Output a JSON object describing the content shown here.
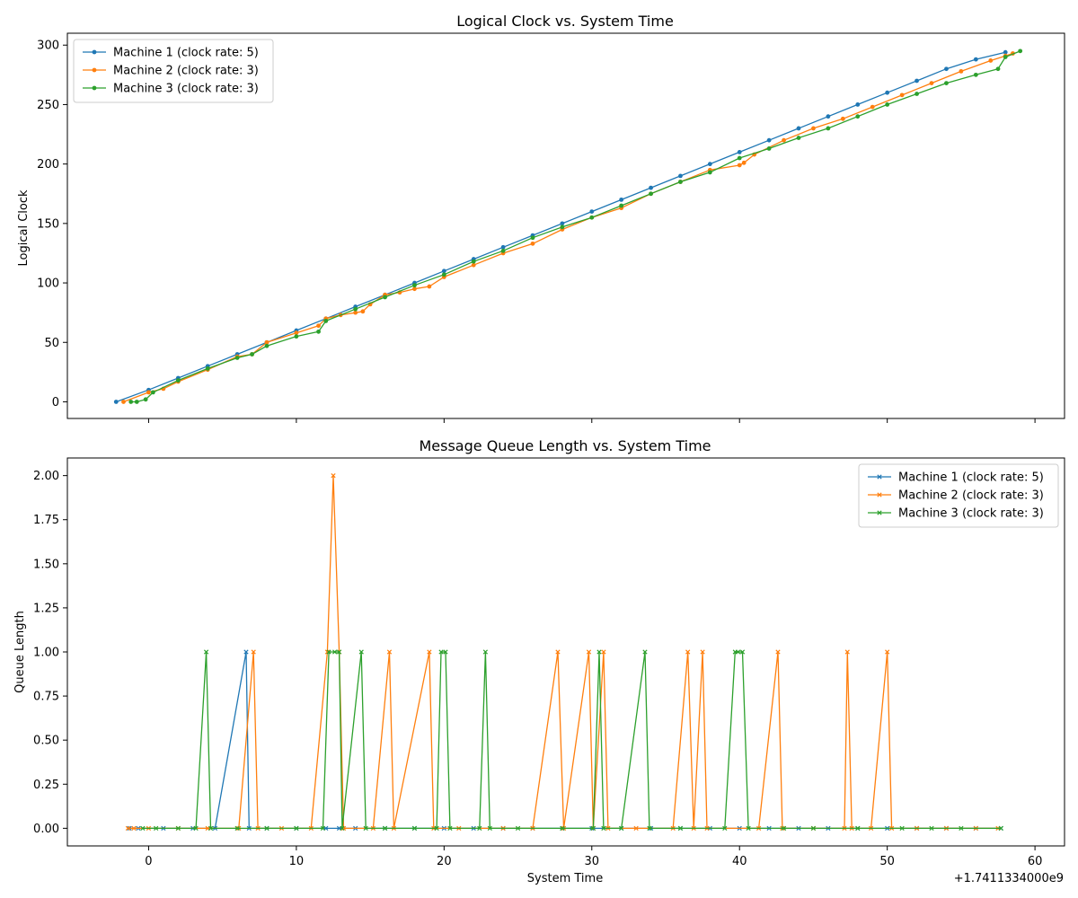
{
  "chart_data": [
    {
      "type": "line",
      "title": "Logical Clock vs. System Time",
      "xlabel": "",
      "ylabel": "Logical Clock",
      "xlim": [
        -5.5,
        62
      ],
      "ylim": [
        -14,
        310
      ],
      "x_ticks": [
        0,
        10,
        20,
        30,
        40,
        50,
        60
      ],
      "x_tick_labels": [
        "0",
        "10",
        "20",
        "30",
        "40",
        "50",
        "60"
      ],
      "y_ticks": [
        0,
        50,
        100,
        150,
        200,
        250,
        300
      ],
      "y_tick_labels": [
        "0",
        "50",
        "100",
        "150",
        "200",
        "250",
        "300"
      ],
      "marker": "circle",
      "legend": "upper-left",
      "grid": false,
      "series": [
        {
          "name": "Machine 1 (clock rate: 5)",
          "color": "#1f77b4",
          "x": [
            -2.2,
            0,
            2,
            4,
            6,
            8,
            10,
            12,
            14,
            16,
            18,
            20,
            22,
            24,
            26,
            28,
            30,
            32,
            34,
            36,
            38,
            40,
            42,
            44,
            46,
            48,
            50,
            52,
            54,
            56,
            58
          ],
          "y": [
            0,
            10,
            20,
            30,
            40,
            50,
            60,
            70,
            80,
            90,
            100,
            110,
            120,
            130,
            140,
            150,
            160,
            170,
            180,
            190,
            200,
            210,
            220,
            230,
            240,
            250,
            260,
            270,
            280,
            288,
            294
          ]
        },
        {
          "name": "Machine 2 (clock rate: 3)",
          "color": "#ff7f0e",
          "x": [
            -1.7,
            0,
            1,
            2,
            4,
            6,
            7,
            8,
            10,
            11.5,
            12,
            13,
            14,
            14.5,
            15,
            16,
            17,
            18,
            19,
            20,
            22,
            24,
            26,
            28,
            30,
            32,
            34,
            36,
            38,
            40,
            40.3,
            41,
            43,
            45,
            47,
            49,
            51,
            53,
            55,
            57,
            58,
            58.5
          ],
          "y": [
            0,
            8,
            11,
            17,
            27,
            38,
            40,
            50,
            58,
            64,
            70,
            73,
            75,
            76,
            82,
            90,
            92,
            95,
            97,
            105,
            115,
            125,
            133,
            145,
            155,
            163,
            175,
            185,
            195,
            199,
            201,
            208,
            220,
            230,
            238,
            248,
            258,
            268,
            278,
            287,
            291,
            293
          ]
        },
        {
          "name": "Machine 3 (clock rate: 3)",
          "color": "#2ca02c",
          "x": [
            -1.2,
            -0.8,
            -0.2,
            0.3,
            2,
            4,
            6,
            7,
            8,
            10,
            11.5,
            12,
            14,
            16,
            18,
            20,
            22,
            24,
            26,
            28,
            30,
            32,
            34,
            36,
            38,
            40,
            42,
            44,
            46,
            48,
            50,
            52,
            54,
            56,
            57.5,
            58,
            59
          ],
          "y": [
            0,
            0,
            2,
            8,
            18,
            28,
            37,
            40,
            47,
            55,
            59,
            68,
            78,
            88,
            98,
            107,
            118,
            127,
            138,
            147,
            155,
            165,
            175,
            185,
            193,
            205,
            213,
            222,
            230,
            240,
            250,
            259,
            268,
            275,
            280,
            290,
            295
          ]
        }
      ]
    },
    {
      "type": "line",
      "title": "Message Queue Length vs. System Time",
      "xlabel": "System Time",
      "ylabel": "Queue Length",
      "xlim": [
        -5.5,
        62
      ],
      "ylim": [
        -0.1,
        2.1
      ],
      "x_ticks": [
        0,
        10,
        20,
        30,
        40,
        50,
        60
      ],
      "x_tick_labels": [
        "0",
        "10",
        "20",
        "30",
        "40",
        "50",
        "60"
      ],
      "x_offset_label": "+1.7411334000e9",
      "y_ticks": [
        0,
        0.25,
        0.5,
        0.75,
        1.0,
        1.25,
        1.5,
        1.75,
        2.0
      ],
      "y_tick_labels": [
        "0.00",
        "0.25",
        "0.50",
        "0.75",
        "1.00",
        "1.25",
        "1.50",
        "1.75",
        "2.00"
      ],
      "marker": "x",
      "legend": "upper-right",
      "grid": false,
      "series": [
        {
          "name": "Machine 1 (clock rate: 5)",
          "color": "#1f77b4",
          "x": [
            -1.3,
            -0.7,
            1,
            3,
            4.5,
            6.6,
            6.8,
            8,
            10,
            12,
            12.9,
            14,
            16,
            18,
            20,
            22,
            24,
            26,
            28,
            30,
            32,
            34,
            36,
            38,
            40,
            42,
            44,
            46,
            48,
            50,
            52,
            54,
            56,
            57.7
          ],
          "y": [
            0,
            0,
            0,
            0,
            0,
            1,
            0,
            0,
            0,
            0,
            0,
            0,
            0,
            0,
            0,
            0,
            0,
            0,
            0,
            0,
            0,
            0,
            0,
            0,
            0,
            0,
            0,
            0,
            0,
            0,
            0,
            0,
            0,
            0
          ]
        },
        {
          "name": "Machine 2 (clock rate: 3)",
          "color": "#ff7f0e",
          "x": [
            -1.4,
            -1,
            0,
            2,
            4,
            6.1,
            7.1,
            7.4,
            9,
            11,
            12.1,
            12.5,
            12.9,
            13.2,
            15.2,
            16.3,
            16.6,
            19,
            19.3,
            21,
            24,
            26,
            27.7,
            28.1,
            29.8,
            30.1,
            30.8,
            31.1,
            33,
            35.5,
            36.5,
            36.9,
            37.5,
            37.8,
            41.3,
            42.6,
            42.9,
            45,
            47.1,
            47.3,
            47.6,
            48.9,
            50,
            50.3,
            52,
            54,
            56,
            57.5
          ],
          "y": [
            0,
            0,
            0,
            0,
            0,
            0,
            1,
            0,
            0,
            0,
            1,
            2,
            1,
            0,
            0,
            1,
            0,
            1,
            0,
            0,
            0,
            0,
            1,
            0,
            1,
            0,
            1,
            0,
            0,
            0,
            1,
            0,
            1,
            0,
            0,
            1,
            0,
            0,
            0,
            1,
            0,
            0,
            1,
            0,
            0,
            0,
            0,
            0
          ]
        },
        {
          "name": "Machine 3 (clock rate: 3)",
          "color": "#2ca02c",
          "x": [
            -0.4,
            0.5,
            2,
            3.2,
            3.9,
            4.2,
            6,
            8,
            10,
            11.8,
            12.2,
            12.6,
            12.9,
            13.1,
            14.4,
            14.7,
            16,
            18,
            19.5,
            19.8,
            20.1,
            20.4,
            22.4,
            22.8,
            23.1,
            25,
            28,
            30.1,
            30.5,
            30.8,
            32,
            33.6,
            33.9,
            36,
            39,
            39.7,
            39.9,
            40.2,
            40.6,
            43,
            45,
            48,
            51,
            53,
            55,
            57.7
          ],
          "y": [
            0,
            0,
            0,
            0,
            1,
            0,
            0,
            0,
            0,
            0,
            1,
            1,
            1,
            0,
            1,
            0,
            0,
            0,
            0,
            1,
            1,
            0,
            0,
            1,
            0,
            0,
            0,
            0,
            1,
            0,
            0,
            1,
            0,
            0,
            0,
            1,
            1,
            1,
            0,
            0,
            0,
            0,
            0,
            0,
            0,
            0
          ]
        }
      ]
    }
  ]
}
